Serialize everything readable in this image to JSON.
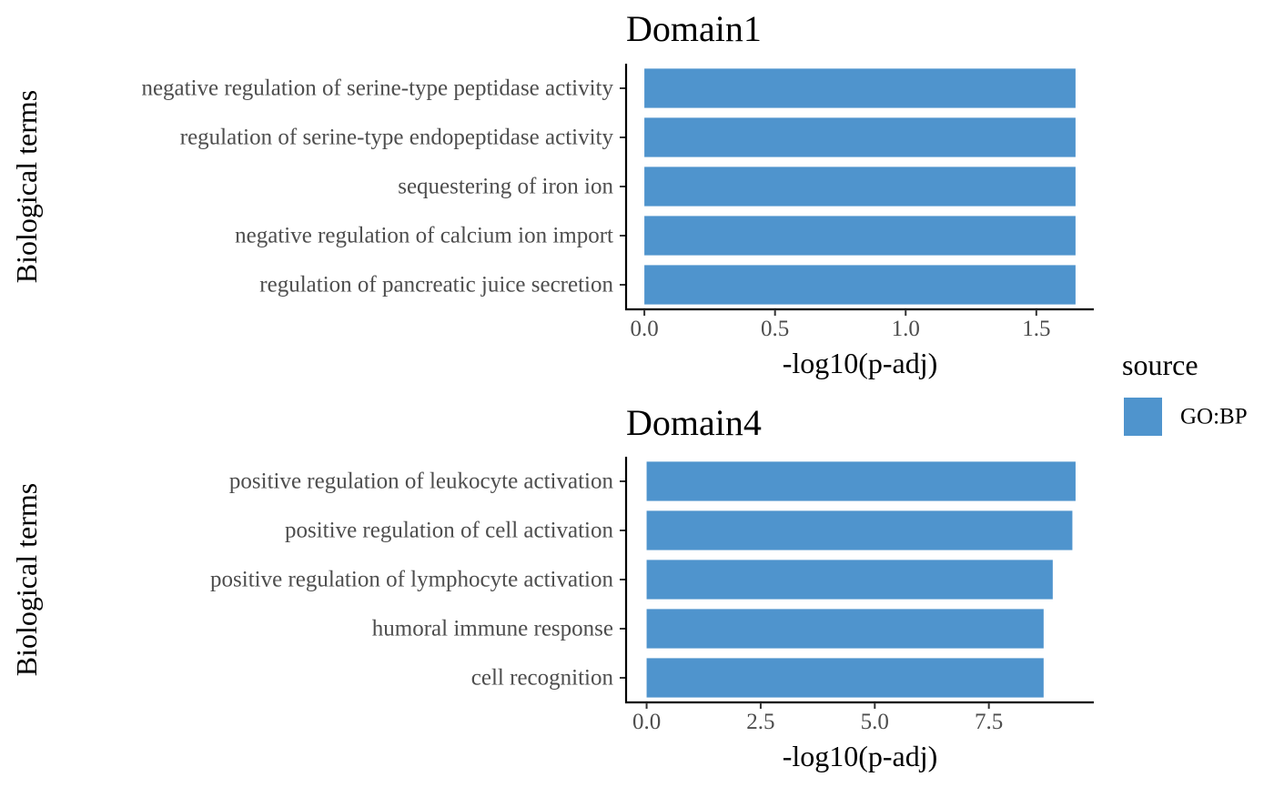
{
  "chart_data": [
    {
      "type": "bar",
      "orientation": "horizontal",
      "title": "Domain1",
      "xlabel": "-log10(p-adj)",
      "ylabel": "Biological terms",
      "categories": [
        "negative regulation of serine-type peptidase activity",
        "regulation of serine-type endopeptidase activity",
        "sequestering of iron ion",
        "negative regulation of calcium ion import",
        "regulation of pancreatic juice secretion"
      ],
      "series": [
        {
          "name": "GO:BP",
          "values": [
            1.65,
            1.65,
            1.65,
            1.65,
            1.65
          ]
        }
      ],
      "xlim": [
        -0.07,
        1.72
      ],
      "xticks": [
        0,
        0.5,
        1.0,
        1.5
      ],
      "xtick_labels": [
        "0.0",
        "0.5",
        "1.0",
        "1.5"
      ],
      "grid": false
    },
    {
      "type": "bar",
      "orientation": "horizontal",
      "title": "Domain4",
      "xlabel": "-log10(p-adj)",
      "ylabel": "Biological terms",
      "categories": [
        "positive regulation of leukocyte activation",
        "positive regulation of cell activation",
        "positive regulation of lymphocyte activation",
        "humoral immune response",
        "cell recognition"
      ],
      "series": [
        {
          "name": "GO:BP",
          "values": [
            9.4,
            9.33,
            8.9,
            8.7,
            8.7
          ]
        }
      ],
      "xlim": [
        -0.45,
        9.8
      ],
      "xticks": [
        0,
        2.5,
        5.0,
        7.5
      ],
      "xtick_labels": [
        "0.0",
        "2.5",
        "5.0",
        "7.5"
      ],
      "grid": false
    }
  ],
  "legend": {
    "title": "source",
    "placement": "right",
    "items": [
      {
        "label": "GO:BP",
        "color": "#4f94cd"
      }
    ]
  },
  "colors": {
    "bar": "#4f94cd"
  }
}
